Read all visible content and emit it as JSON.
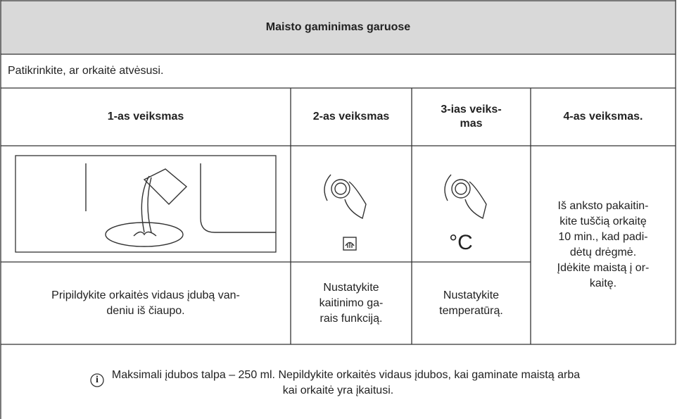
{
  "header": {
    "title": "Maisto gaminimas garuose"
  },
  "intro": "Patikrinkite, ar orkaitė atvėsusi.",
  "table": {
    "columns": [
      "1-as veiksmas",
      "2-as veiksmas",
      "3-ias veiks-\nmas",
      "4-as veiksmas."
    ],
    "icons": {
      "temperature": "°C"
    },
    "rows": [
      [
        "Pripildykite orkaitės vidaus įdubą van-\ndeniu iš čiaupo.",
        "Nustatykite\nkaitinimo ga-\nrais funkciją.",
        "Nustatykite\ntemperatūrą."
      ]
    ],
    "step4": "Iš anksto pakaitin-\nkite tuščią orkaitę\n10 min., kad padi-\ndėtų drėgmė.\nĮdėkite maistą į or-\nkaitę."
  },
  "note": {
    "icon": "i",
    "text": "Maksimali įdubos talpa – 250 ml. Nepildykite orkaitės vidaus įdubos, kai gaminate maistą arba\nkai orkaitė yra įkaitusi."
  }
}
